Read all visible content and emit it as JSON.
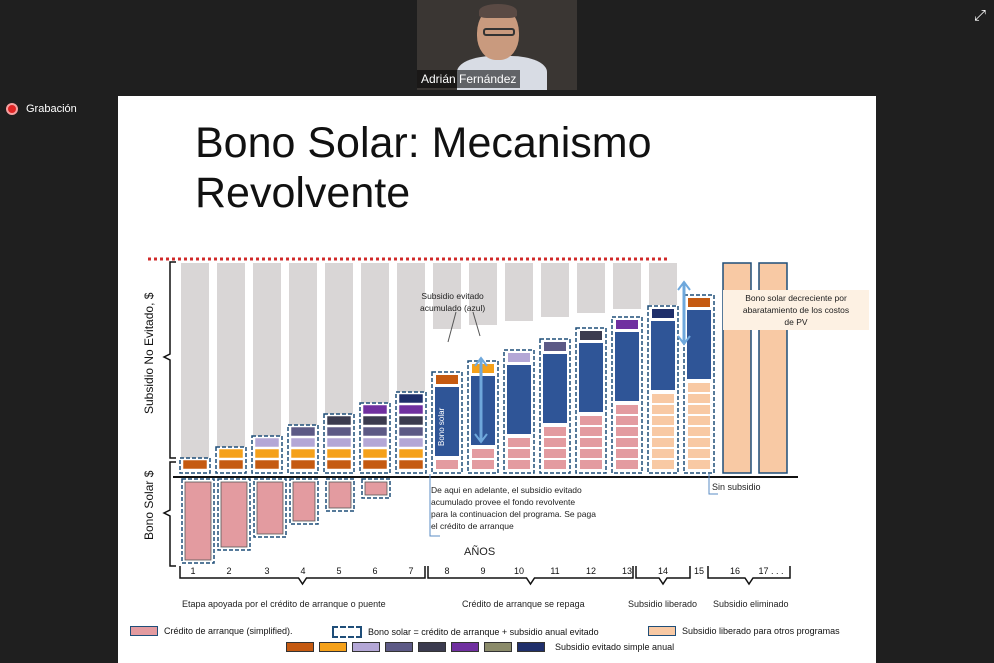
{
  "meeting": {
    "participant_name": "Adrián Fernández",
    "recording_label": "Grabación",
    "expand_icon": "expand-icon"
  },
  "slide": {
    "title": "Bono Solar: Mecanismo\nRevolvente",
    "y_upper_label": "Subsidio No Evitado, $",
    "y_lower_label": "Bono Solar $",
    "annotation_accum": "Subsidio evitado\nacumulado (azul)",
    "bono_solar_bar_text": "Bono solar",
    "note_desde_aqui": "De aqui en adelante, el subsidio evitado\nacumulado provee el fondo revolvente\npara la continuacion del programa. Se paga\nel crédito de arranque",
    "note_decreciente": "Bono solar decreciente por\nabaratamiento de los costos\nde PV",
    "sin_subsidio": "Sin subsidio",
    "years_axis_label": "AÑOS",
    "year_labels": [
      "1",
      "2",
      "3",
      "4",
      "5",
      "6",
      "7",
      "8",
      "9",
      "10",
      "11",
      "12",
      "13",
      "14",
      "15",
      "16",
      "17 . . ."
    ],
    "phase_labels": [
      "Etapa apoyada por el crédito de arranque o puente",
      "Crédito de arranque se repaga",
      "Subsidio liberado",
      "Subsidio eliminado"
    ],
    "legend": {
      "credito": "Crédito de arranque (simplified).",
      "bono": "Bono solar = crédito de arranque + subsidio anual evitado",
      "liberado": "Subsidio liberado para otros programas",
      "simple": "Subsidio evitado simple anual"
    }
  },
  "chart_data": {
    "type": "bar",
    "categories": [
      "1",
      "2",
      "3",
      "4",
      "5",
      "6",
      "7",
      "8",
      "9",
      "10",
      "11",
      "12",
      "13",
      "14",
      "15",
      "16",
      "17 . . ."
    ],
    "stacked_annual_avoided_subsidy_blocks": [
      1,
      2,
      3,
      4,
      5,
      6,
      7,
      8,
      9,
      10,
      11,
      12,
      13,
      14,
      15,
      0,
      0
    ],
    "credito_de_arranque_blocks": [
      6,
      5,
      4,
      3,
      2,
      1,
      0,
      0,
      0,
      0,
      0,
      0,
      0,
      0,
      0,
      0,
      0
    ],
    "colors": {
      "gray_bar": "#d9d6d6",
      "pink": "#e39ba0",
      "orange_dark": "#c55a11",
      "orange": "#f5a11a",
      "lavender": "#b4a7d6",
      "purple_gray": "#5d5a86",
      "dark_gray": "#3b3b4f",
      "purple": "#7030a0",
      "olive": "#8b8b6a",
      "navy": "#1f2f6b",
      "steel_blue": "#2f5597",
      "peach": "#f8c9a4",
      "dashed_border": "#1f4e79",
      "red_dotted": "#d02a2a"
    }
  }
}
